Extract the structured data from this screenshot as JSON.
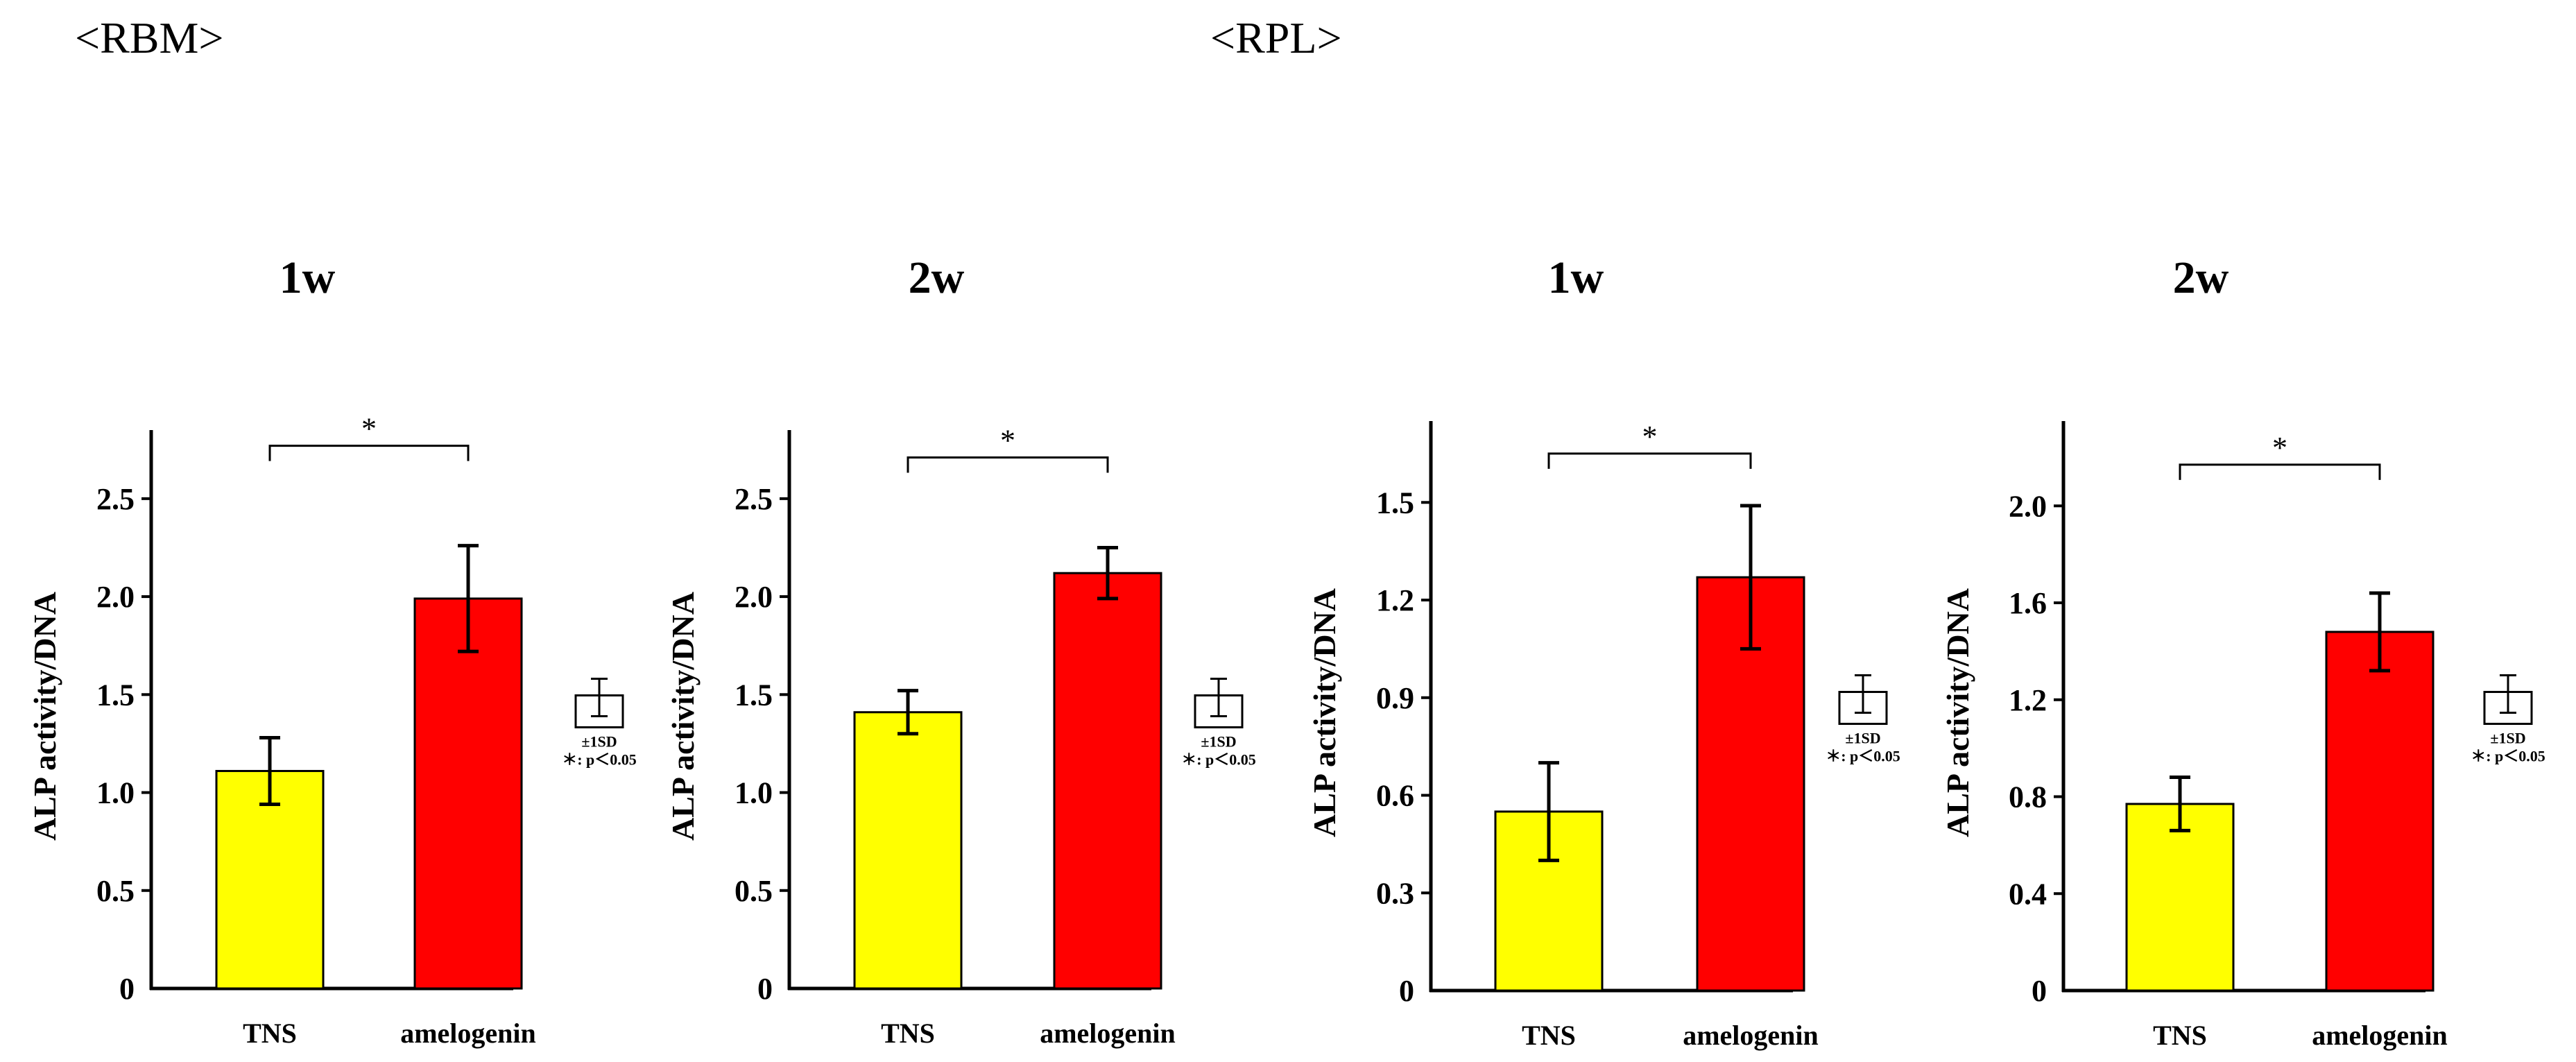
{
  "sections": [
    {
      "label": "<RBM>"
    },
    {
      "label": "<RPL>"
    }
  ],
  "legend": {
    "sd_label": "±1SD",
    "p_label": "＊: p＜0.05"
  },
  "chart_data": [
    {
      "type": "bar",
      "section": "RBM",
      "title": "1w",
      "ylabel": "ALP activity/DNA",
      "categories": [
        "TNS",
        "amelogenin"
      ],
      "values": [
        1.11,
        1.99
      ],
      "error": [
        0.17,
        0.27
      ],
      "colors": [
        "#ffff00",
        "#ff0000"
      ],
      "ylim": [
        0,
        2.85
      ],
      "ticks": [
        0,
        0.5,
        1.0,
        1.5,
        2.0,
        2.5
      ],
      "tick_labels": [
        "0",
        "0.5",
        "1.0",
        "1.5",
        "2.0",
        "2.5"
      ],
      "significance": {
        "from": 0,
        "to": 1,
        "label": "*",
        "level": 2.77
      }
    },
    {
      "type": "bar",
      "section": "RBM",
      "title": "2w",
      "ylabel": "ALP activity/DNA",
      "categories": [
        "TNS",
        "amelogenin"
      ],
      "values": [
        1.41,
        2.12
      ],
      "error": [
        0.11,
        0.13
      ],
      "colors": [
        "#ffff00",
        "#ff0000"
      ],
      "ylim": [
        0,
        2.85
      ],
      "ticks": [
        0,
        0.5,
        1.0,
        1.5,
        2.0,
        2.5
      ],
      "tick_labels": [
        "0",
        "0.5",
        "1.0",
        "1.5",
        "2.0",
        "2.5"
      ],
      "significance": {
        "from": 0,
        "to": 1,
        "label": "*",
        "level": 2.71
      }
    },
    {
      "type": "bar",
      "section": "RPL",
      "title": "1w",
      "ylabel": "ALP activity/DNA",
      "categories": [
        "TNS",
        "amelogenin"
      ],
      "values": [
        0.55,
        1.27
      ],
      "error": [
        0.15,
        0.22
      ],
      "colors": [
        "#ffff00",
        "#ff0000"
      ],
      "ylim": [
        0,
        1.75
      ],
      "ticks": [
        0,
        0.3,
        0.6,
        0.9,
        1.2,
        1.5
      ],
      "tick_labels": [
        "0",
        "0.3",
        "0.6",
        "0.9",
        "1.2",
        "1.5"
      ],
      "significance": {
        "from": 0,
        "to": 1,
        "label": "*",
        "level": 1.65
      }
    },
    {
      "type": "bar",
      "section": "RPL",
      "title": "2w",
      "ylabel": "ALP activity/DNA",
      "categories": [
        "TNS",
        "amelogenin"
      ],
      "values": [
        0.77,
        1.48
      ],
      "error": [
        0.11,
        0.16
      ],
      "colors": [
        "#ffff00",
        "#ff0000"
      ],
      "ylim": [
        0,
        2.35
      ],
      "ticks": [
        0,
        0.4,
        0.8,
        1.2,
        1.6,
        2.0
      ],
      "tick_labels": [
        "0",
        "0.4",
        "0.8",
        "1.2",
        "1.6",
        "2.0"
      ],
      "significance": {
        "from": 0,
        "to": 1,
        "label": "*",
        "level": 2.17
      }
    }
  ]
}
